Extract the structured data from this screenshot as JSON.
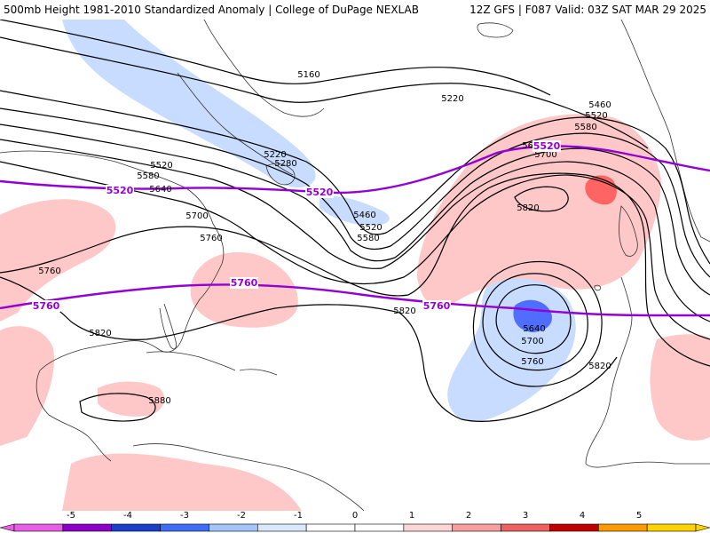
{
  "header": {
    "left_text": "500mb Height 1981-2010 Standardized Anomaly | College of DuPage NEXLAB",
    "right_text": "12Z GFS | F087 Valid: 03Z SAT MAR 29 2025"
  },
  "colors": {
    "contour": "#000000",
    "reference_contour": "#9400d3",
    "land_outline": "#333333",
    "anomaly_pos_1": "#ffc8c8",
    "anomaly_pos_2": "#ff6464",
    "anomaly_neg_1": "#c8dcff",
    "anomaly_neg_2": "#4f6eff"
  },
  "contour_labels": [
    "5160",
    "5220",
    "5460",
    "5520",
    "5580",
    "5640",
    "5700",
    "5520",
    "5580",
    "5640",
    "5700",
    "5760",
    "5220",
    "5280",
    "5460",
    "5520",
    "5580",
    "5820",
    "5820",
    "5640",
    "5700",
    "5760",
    "5820",
    "5760",
    "5820",
    "5880"
  ],
  "reference_labels": {
    "north": [
      "5520",
      "5520",
      "5520"
    ],
    "south": [
      "5760",
      "5760",
      "5760"
    ]
  },
  "colorbar": {
    "ticks": [
      "-5",
      "-4",
      "-3",
      "-2",
      "-1",
      "0",
      "1",
      "2",
      "3",
      "4",
      "5"
    ],
    "segments": [
      "#e75fe6",
      "#8a00c8",
      "#1b3fc9",
      "#3f6df7",
      "#a3c5fb",
      "#d8e8ff",
      "#ffffff",
      "#ffffff",
      "#ffd6d6",
      "#f79f9f",
      "#f06060",
      "#c00000",
      "#ff9a00",
      "#ffd300"
    ]
  }
}
